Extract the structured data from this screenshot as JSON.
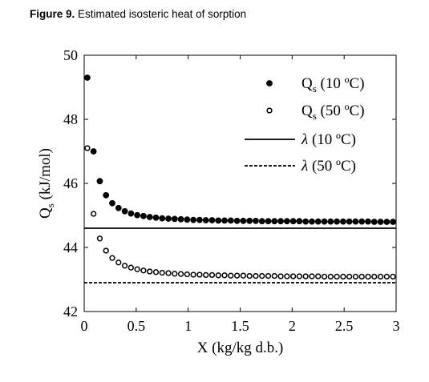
{
  "caption": {
    "label": "Figure 9.",
    "text": "Estimated isosteric heat of sorption"
  },
  "chart_data": {
    "type": "scatter",
    "xlabel": "X (kg/kg d.b.)",
    "ylabel": {
      "main": "Q",
      "sub": "s",
      "unit": "(kJ/mol)"
    },
    "xlim": [
      0,
      3
    ],
    "ylim": [
      42,
      50
    ],
    "xticks": [
      0,
      0.5,
      1,
      1.5,
      2,
      2.5,
      3
    ],
    "xtick_labels": [
      "0",
      "0.5",
      "1",
      "1.5",
      "2",
      "2.5",
      "3"
    ],
    "yticks": [
      42,
      44,
      46,
      48,
      50
    ],
    "ytick_labels": [
      "42",
      "44",
      "46",
      "48",
      "50"
    ],
    "grid": false,
    "legend_position": "top-right",
    "colors": {
      "axis": "#000000",
      "marker": "#000000",
      "background": "#ffffff"
    },
    "x": [
      0.03,
      0.09,
      0.15,
      0.21,
      0.27,
      0.33,
      0.39,
      0.45,
      0.51,
      0.57,
      0.63,
      0.69,
      0.75,
      0.81,
      0.87,
      0.93,
      0.99,
      1.05,
      1.11,
      1.17,
      1.23,
      1.29,
      1.35,
      1.41,
      1.47,
      1.53,
      1.59,
      1.65,
      1.71,
      1.77,
      1.83,
      1.89,
      1.95,
      2.01,
      2.07,
      2.13,
      2.19,
      2.25,
      2.31,
      2.37,
      2.43,
      2.49,
      2.55,
      2.61,
      2.67,
      2.73,
      2.79,
      2.85,
      2.91,
      2.97
    ],
    "series": [
      {
        "name": "Q_s (10 °C)",
        "legend": {
          "main": "Q",
          "sub": "s",
          "rest": " (10 ºC)"
        },
        "marker": "filled-circle",
        "values": [
          49.3,
          47.0,
          46.07,
          45.63,
          45.38,
          45.23,
          45.13,
          45.06,
          45.01,
          44.98,
          44.95,
          44.93,
          44.91,
          44.9,
          44.89,
          44.88,
          44.87,
          44.86,
          44.86,
          44.85,
          44.85,
          44.84,
          44.84,
          44.84,
          44.83,
          44.83,
          44.83,
          44.83,
          44.82,
          44.82,
          44.82,
          44.82,
          44.82,
          44.82,
          44.82,
          44.81,
          44.81,
          44.81,
          44.81,
          44.81,
          44.81,
          44.81,
          44.81,
          44.81,
          44.81,
          44.81,
          44.8,
          44.8,
          44.8,
          44.8
        ]
      },
      {
        "name": "Q_s (50 °C)",
        "legend": {
          "main": "Q",
          "sub": "s",
          "rest": " (50 ºC)"
        },
        "marker": "open-circle",
        "values": [
          47.1,
          45.05,
          44.28,
          43.9,
          43.67,
          43.53,
          43.43,
          43.37,
          43.32,
          43.28,
          43.25,
          43.23,
          43.21,
          43.2,
          43.18,
          43.17,
          43.16,
          43.15,
          43.15,
          43.14,
          43.14,
          43.13,
          43.13,
          43.12,
          43.12,
          43.12,
          43.11,
          43.11,
          43.11,
          43.11,
          43.11,
          43.1,
          43.1,
          43.1,
          43.1,
          43.1,
          43.1,
          43.1,
          43.09,
          43.09,
          43.09,
          43.09,
          43.09,
          43.09,
          43.09,
          43.09,
          43.09,
          43.09,
          43.09,
          43.09
        ]
      }
    ],
    "lines": [
      {
        "name": "λ (10 °C)",
        "legend": {
          "symbol": "λ",
          "rest": " (10 ºC)"
        },
        "y": 44.6,
        "style": "solid"
      },
      {
        "name": "λ (50 °C)",
        "legend": {
          "symbol": "λ",
          "rest": " (50 ºC)"
        },
        "y": 42.9,
        "style": "dashed"
      }
    ]
  }
}
